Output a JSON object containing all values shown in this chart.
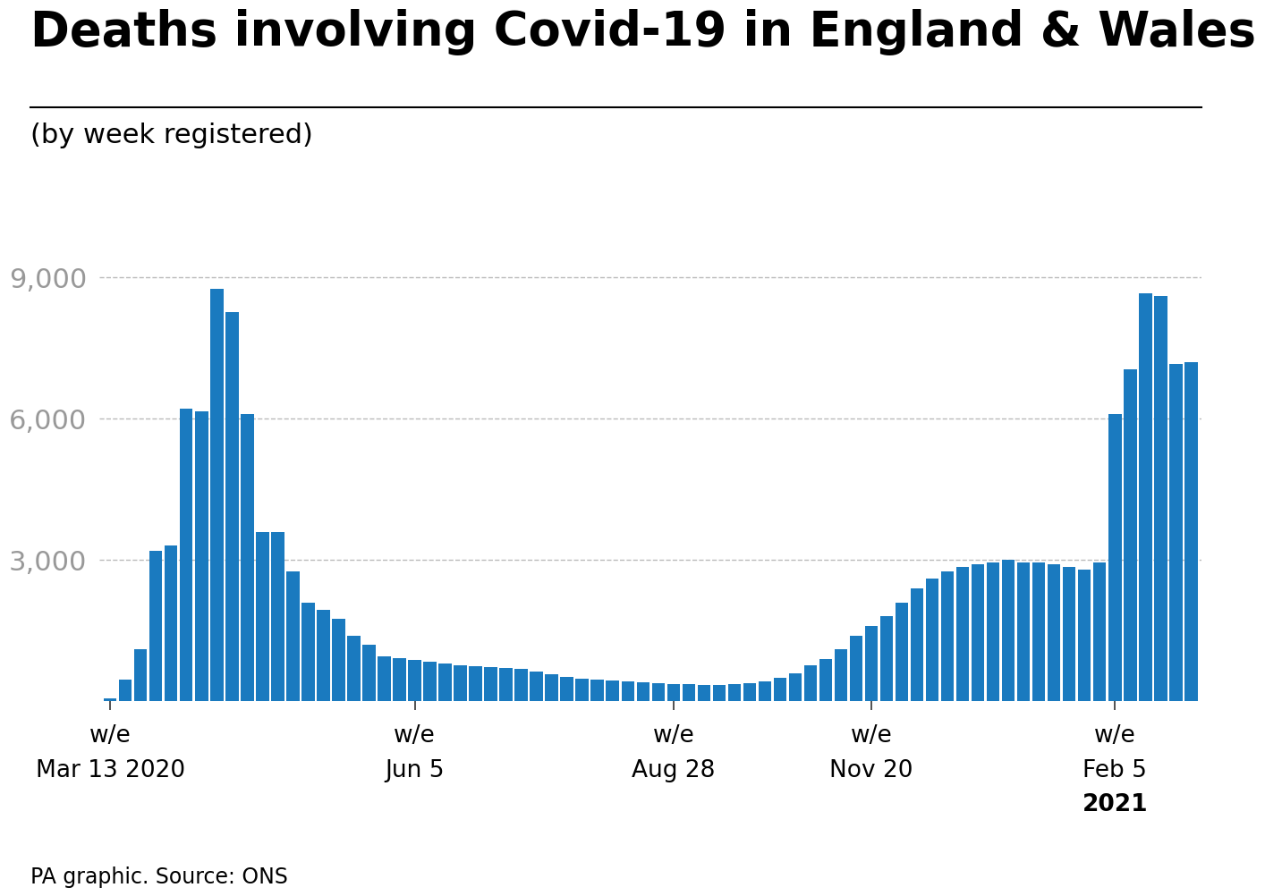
{
  "title": "Deaths involving Covid-19 in England & Wales",
  "subtitle": "(by week registered)",
  "source": "PA graphic. Source: ONS",
  "bar_color": "#1a7abf",
  "background_color": "#ffffff",
  "yticks": [
    3000,
    6000,
    9000
  ],
  "ylim": [
    0,
    9800
  ],
  "values": [
    70,
    460,
    1100,
    3200,
    3300,
    6200,
    6150,
    8750,
    8250,
    6100,
    3600,
    3600,
    2750,
    2100,
    1950,
    1750,
    1400,
    1200,
    950,
    920,
    880,
    840,
    800,
    760,
    740,
    720,
    700,
    680,
    640,
    580,
    520,
    490,
    460,
    440,
    420,
    400,
    380,
    370,
    360,
    350,
    350,
    360,
    380,
    420,
    500,
    600,
    760,
    900,
    1100,
    1400,
    1600,
    1800,
    2100,
    2400,
    2600,
    2750,
    2850,
    2900,
    2950,
    3000,
    2950,
    2950,
    2900,
    2850,
    2800,
    2950,
    6100,
    7050,
    8650,
    8600,
    7150,
    7200
  ],
  "tick_positions_idx": [
    0,
    20,
    37,
    50,
    66
  ],
  "tick_labels_line1": [
    "w/e",
    "w/e",
    "w/e",
    "w/e",
    "w/e"
  ],
  "tick_labels_line2": [
    "Mar 13 2020",
    "Jun 5",
    "Aug 28",
    "Nov 20",
    "Feb 5"
  ],
  "tick_labels_line3": [
    "",
    "",
    "",
    "",
    "2021"
  ],
  "title_fontsize": 38,
  "subtitle_fontsize": 22,
  "source_fontsize": 17,
  "tick_fontsize": 19,
  "ytick_fontsize": 22
}
